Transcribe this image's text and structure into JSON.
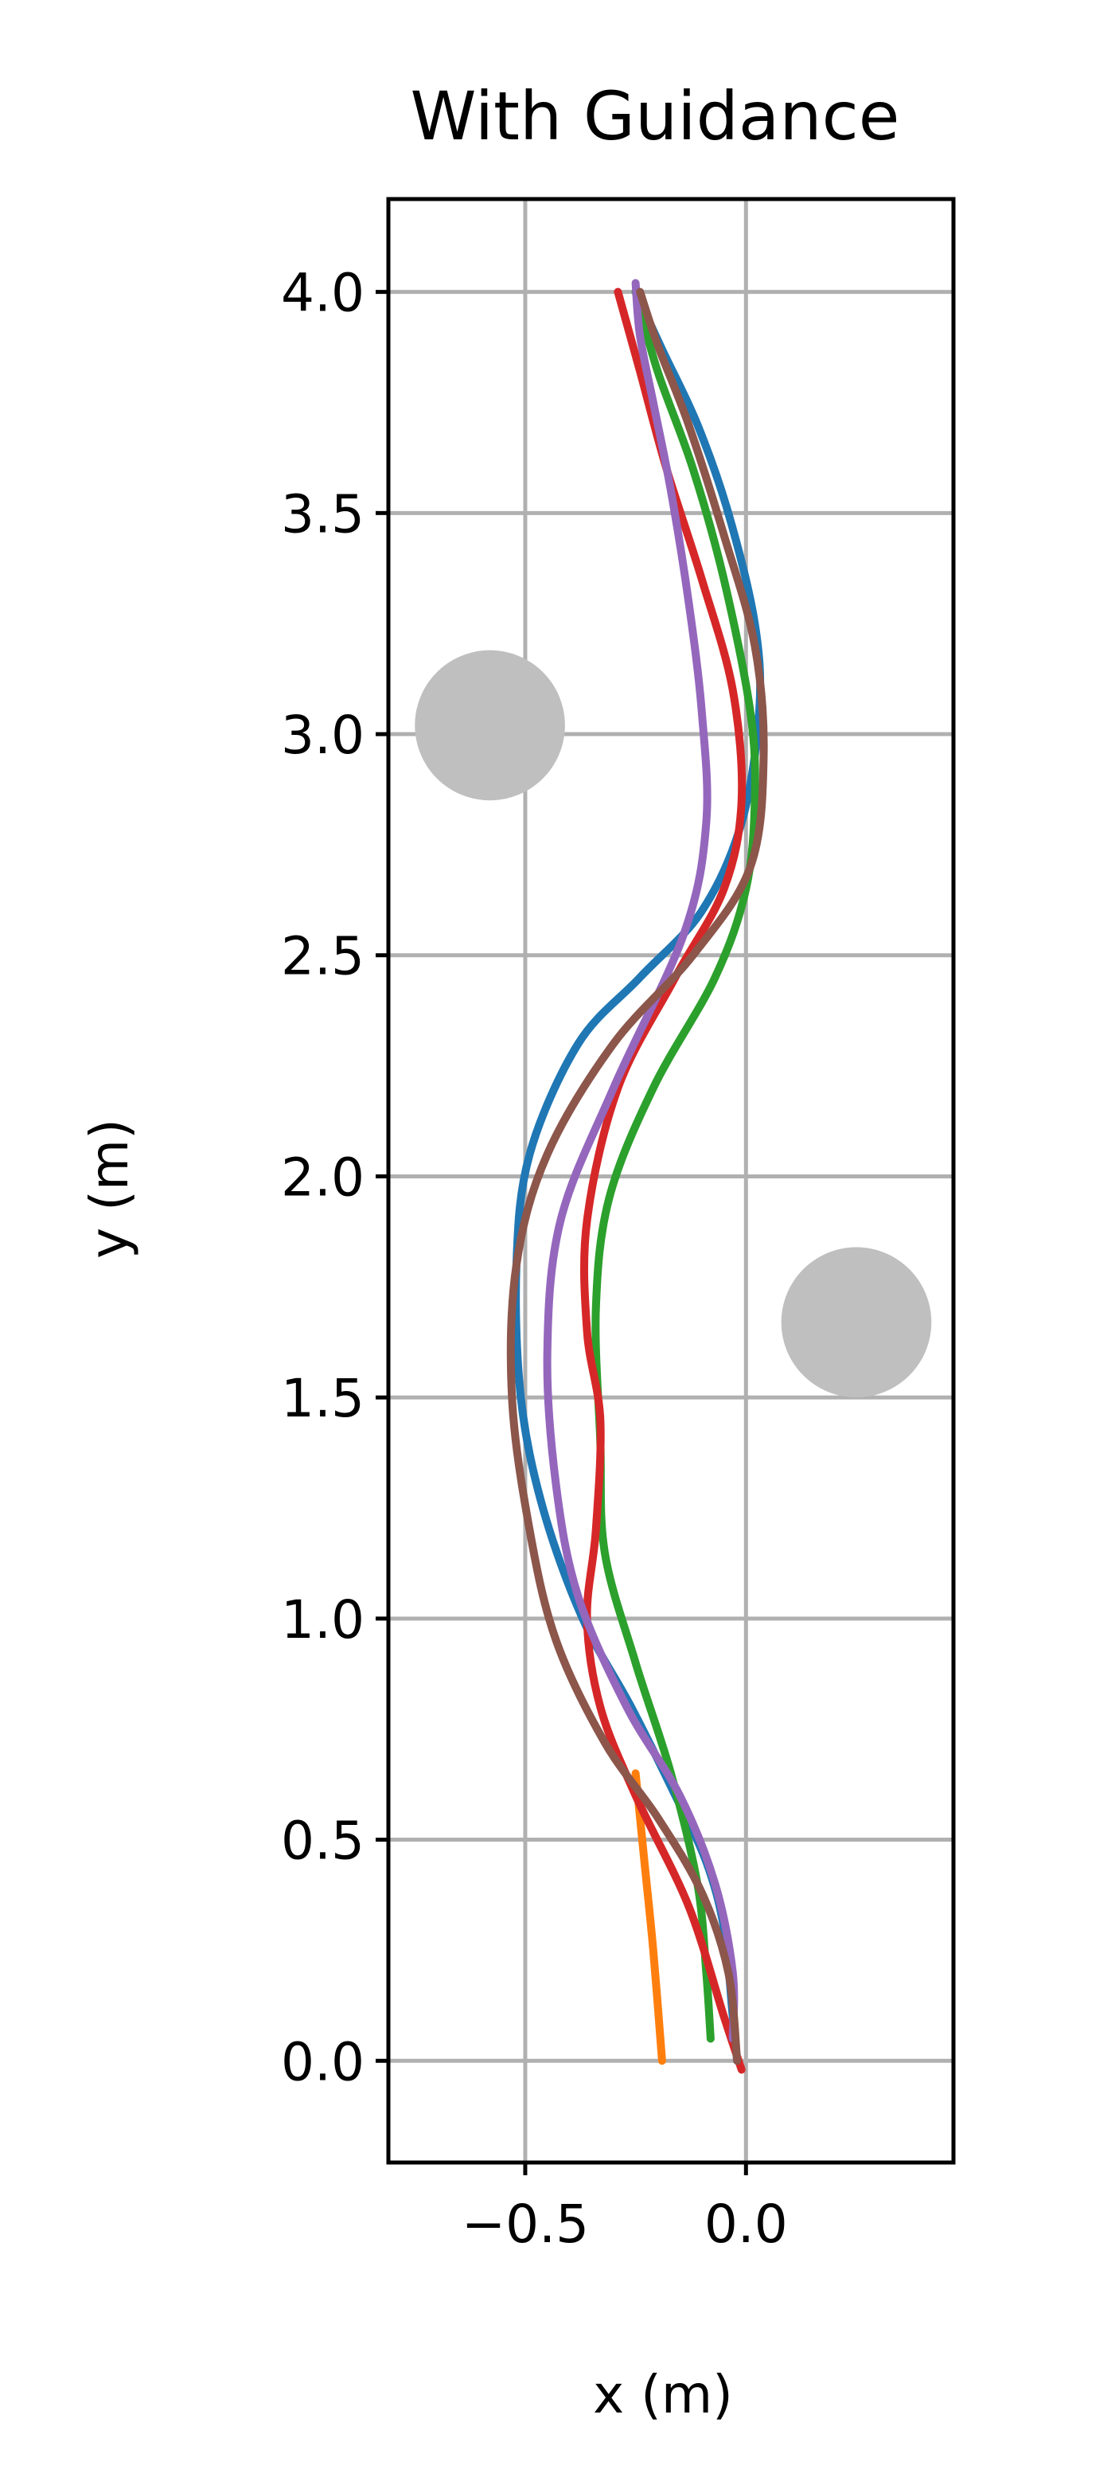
{
  "chart_data": {
    "type": "line",
    "title": "With Guidance",
    "xlabel": "x (m)",
    "ylabel": "y (m)",
    "xlim": [
      -0.81,
      0.47
    ],
    "ylim": [
      -0.23,
      4.21
    ],
    "grid": true,
    "xticks": [
      {
        "value": -0.5,
        "label": "−0.5"
      },
      {
        "value": 0.0,
        "label": "0.0"
      }
    ],
    "yticks": [
      {
        "value": 0.0,
        "label": "0.0"
      },
      {
        "value": 0.5,
        "label": "0.5"
      },
      {
        "value": 1.0,
        "label": "1.0"
      },
      {
        "value": 1.5,
        "label": "1.5"
      },
      {
        "value": 2.0,
        "label": "2.0"
      },
      {
        "value": 2.5,
        "label": "2.5"
      },
      {
        "value": 3.0,
        "label": "3.0"
      },
      {
        "value": 3.5,
        "label": "3.5"
      },
      {
        "value": 4.0,
        "label": "4.0"
      }
    ],
    "obstacles": [
      {
        "x": -0.58,
        "y": 3.02,
        "r": 0.17,
        "color": "#bfbfbf"
      },
      {
        "x": 0.25,
        "y": 1.67,
        "r": 0.17,
        "color": "#bfbfbf"
      }
    ],
    "series": [
      {
        "color": "#1f77b4",
        "x": [
          -0.02,
          -0.03,
          -0.05,
          -0.09,
          -0.16,
          -0.26,
          -0.37,
          -0.46,
          -0.51,
          -0.52,
          -0.49,
          -0.38,
          -0.24,
          -0.1,
          -0.01,
          0.03,
          0.02,
          -0.04,
          -0.11,
          -0.19,
          -0.25
        ],
        "y": [
          0.0,
          0.1,
          0.3,
          0.45,
          0.6,
          0.8,
          1.0,
          1.25,
          1.5,
          1.8,
          2.05,
          2.3,
          2.45,
          2.6,
          2.8,
          3.05,
          3.25,
          3.5,
          3.7,
          3.87,
          4.0
        ]
      },
      {
        "color": "#ff7f0e",
        "x": [
          -0.19,
          -0.21,
          -0.23,
          -0.25
        ],
        "y": [
          0.0,
          0.25,
          0.45,
          0.65
        ]
      },
      {
        "color": "#2ca02c",
        "x": [
          -0.08,
          -0.09,
          -0.11,
          -0.17,
          -0.25,
          -0.32,
          -0.33,
          -0.34,
          -0.31,
          -0.21,
          -0.07,
          0.0,
          0.02,
          0.01,
          -0.05,
          -0.12,
          -0.2,
          -0.25
        ],
        "y": [
          0.05,
          0.2,
          0.4,
          0.65,
          0.9,
          1.15,
          1.4,
          1.7,
          1.95,
          2.2,
          2.45,
          2.65,
          2.85,
          3.05,
          3.35,
          3.6,
          3.82,
          4.0
        ]
      },
      {
        "color": "#d62728",
        "x": [
          -0.01,
          -0.05,
          -0.13,
          -0.25,
          -0.33,
          -0.36,
          -0.34,
          -0.33,
          -0.36,
          -0.36,
          -0.29,
          -0.16,
          -0.05,
          -0.01,
          -0.03,
          -0.1,
          -0.18,
          -0.24,
          -0.29
        ],
        "y": [
          -0.02,
          0.1,
          0.35,
          0.6,
          0.8,
          1.0,
          1.2,
          1.45,
          1.65,
          1.9,
          2.2,
          2.45,
          2.65,
          2.85,
          3.1,
          3.35,
          3.6,
          3.82,
          4.0
        ]
      },
      {
        "color": "#9467bd",
        "x": [
          -0.03,
          -0.03,
          -0.07,
          -0.15,
          -0.27,
          -0.38,
          -0.43,
          -0.45,
          -0.42,
          -0.3,
          -0.14,
          -0.09,
          -0.1,
          -0.13,
          -0.17,
          -0.21,
          -0.24,
          -0.25
        ],
        "y": [
          0.05,
          0.2,
          0.4,
          0.6,
          0.8,
          1.05,
          1.3,
          1.6,
          1.9,
          2.2,
          2.55,
          2.8,
          3.05,
          3.3,
          3.55,
          3.75,
          3.9,
          4.02
        ]
      },
      {
        "color": "#8c564b",
        "x": [
          -0.02,
          -0.04,
          -0.1,
          -0.2,
          -0.32,
          -0.43,
          -0.49,
          -0.53,
          -0.52,
          -0.45,
          -0.3,
          -0.12,
          0.01,
          0.04,
          0.02,
          -0.05,
          -0.13,
          -0.2,
          -0.24
        ],
        "y": [
          0.0,
          0.2,
          0.38,
          0.55,
          0.72,
          0.95,
          1.2,
          1.5,
          1.8,
          2.05,
          2.3,
          2.5,
          2.7,
          2.95,
          3.2,
          3.45,
          3.7,
          3.88,
          4.0
        ]
      }
    ]
  }
}
